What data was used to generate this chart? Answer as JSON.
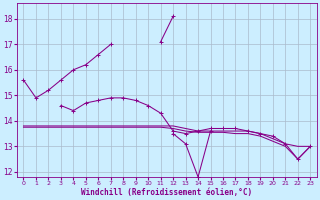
{
  "xlabel": "Windchill (Refroidissement éolien,°C)",
  "bg_color": "#cceeff",
  "grid_color": "#aabbcc",
  "line_color": "#880088",
  "xlim": [
    -0.5,
    23.5
  ],
  "ylim": [
    11.8,
    18.6
  ],
  "yticks": [
    12,
    13,
    14,
    15,
    16,
    17,
    18
  ],
  "xticks": [
    0,
    1,
    2,
    3,
    4,
    5,
    6,
    7,
    8,
    9,
    10,
    11,
    12,
    13,
    14,
    15,
    16,
    17,
    18,
    19,
    20,
    21,
    22,
    23
  ],
  "lines": [
    {
      "x": [
        0,
        1,
        2,
        3,
        4,
        5,
        6,
        7,
        8,
        9,
        10,
        11,
        12
      ],
      "y": [
        15.6,
        14.9,
        15.2,
        15.6,
        16.0,
        16.2,
        16.6,
        17.0,
        null,
        null,
        null,
        17.1,
        18.1
      ],
      "marker": true
    },
    {
      "x": [
        3,
        4,
        5,
        6,
        7,
        8,
        9,
        10,
        11,
        12,
        13,
        14,
        15,
        16,
        17,
        18,
        19,
        20,
        21,
        22,
        23
      ],
      "y": [
        14.6,
        14.4,
        14.7,
        14.8,
        14.9,
        14.9,
        14.8,
        14.6,
        14.3,
        13.6,
        13.5,
        13.6,
        13.7,
        13.7,
        13.7,
        13.6,
        13.5,
        13.4,
        13.1,
        12.5,
        13.0
      ],
      "marker": true
    },
    {
      "x": [
        12,
        13,
        14,
        15
      ],
      "y": [
        13.5,
        13.1,
        11.8,
        13.6
      ],
      "marker": true
    },
    {
      "x": [
        0,
        1,
        2,
        3,
        4,
        5,
        6,
        7,
        8,
        9,
        10,
        11,
        12,
        13,
        14,
        15,
        16,
        17,
        18,
        19,
        20,
        21,
        22,
        23
      ],
      "y": [
        13.8,
        13.8,
        13.8,
        13.8,
        13.8,
        13.8,
        13.8,
        13.8,
        13.8,
        13.8,
        13.8,
        13.8,
        13.8,
        13.7,
        13.6,
        13.6,
        13.6,
        13.6,
        13.6,
        13.5,
        13.3,
        13.1,
        13.0,
        13.0
      ],
      "marker": false
    },
    {
      "x": [
        0,
        1,
        2,
        3,
        4,
        5,
        6,
        7,
        8,
        9,
        10,
        11,
        12,
        13,
        14,
        15,
        16,
        17,
        18,
        19,
        20,
        21,
        22,
        23
      ],
      "y": [
        13.75,
        13.75,
        13.75,
        13.75,
        13.75,
        13.75,
        13.75,
        13.75,
        13.75,
        13.75,
        13.75,
        13.75,
        13.7,
        13.6,
        13.55,
        13.55,
        13.55,
        13.5,
        13.5,
        13.4,
        13.2,
        13.0,
        12.5,
        13.0
      ],
      "marker": false
    }
  ]
}
